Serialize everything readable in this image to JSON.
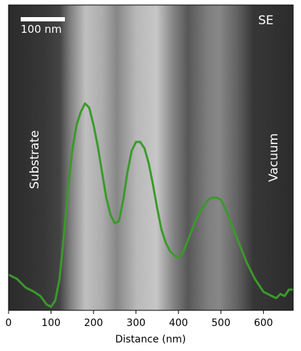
{
  "scale_bar_label": "100 nm",
  "detector_label": "SE",
  "left_region_label": "Substrate",
  "right_region_label": "Vacuum",
  "line_color": "#3a9a2a",
  "chart_data": {
    "type": "line",
    "xlabel": "Distance (nm)",
    "xlim": [
      0,
      670
    ],
    "xticks": [
      0,
      100,
      200,
      300,
      400,
      500,
      600
    ],
    "series": [
      {
        "x": [
          0,
          20,
          40,
          60,
          75,
          90,
          100,
          110,
          120,
          130,
          140,
          150,
          160,
          170,
          180,
          190,
          200,
          210,
          220,
          230,
          240,
          250,
          260,
          270,
          280,
          290,
          300,
          310,
          320,
          330,
          340,
          350,
          360,
          370,
          380,
          390,
          400,
          410,
          420,
          430,
          440,
          450,
          460,
          470,
          480,
          490,
          500,
          510,
          520,
          530,
          540,
          550,
          560,
          570,
          580,
          590,
          600,
          610,
          620,
          630,
          640,
          650,
          660,
          670
        ],
        "y": [
          0.1,
          0.08,
          0.04,
          0.02,
          0.0,
          -0.04,
          -0.05,
          -0.02,
          0.08,
          0.28,
          0.5,
          0.68,
          0.8,
          0.86,
          0.9,
          0.88,
          0.8,
          0.7,
          0.58,
          0.46,
          0.38,
          0.34,
          0.35,
          0.45,
          0.58,
          0.68,
          0.72,
          0.72,
          0.69,
          0.62,
          0.52,
          0.41,
          0.31,
          0.25,
          0.21,
          0.19,
          0.18,
          0.2,
          0.25,
          0.3,
          0.35,
          0.39,
          0.42,
          0.45,
          0.46,
          0.46,
          0.45,
          0.41,
          0.36,
          0.31,
          0.26,
          0.21,
          0.16,
          0.12,
          0.08,
          0.05,
          0.02,
          0.01,
          0.0,
          -0.01,
          0.01,
          0.0,
          0.03,
          0.03
        ]
      }
    ]
  }
}
